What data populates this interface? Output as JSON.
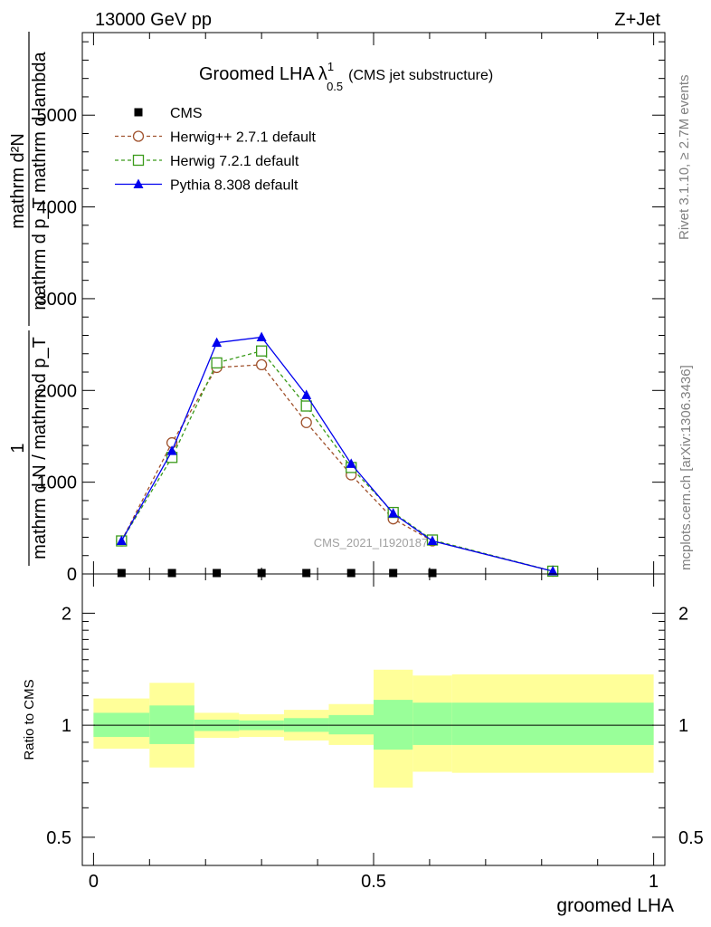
{
  "header": {
    "beam": "13000 GeV pp",
    "process": "Z+Jet"
  },
  "side_labels": {
    "rivet": "Rivet 3.1.10, ≥ 2.7M events",
    "site": "mcplots.cern.ch [arXiv:1306.3436]"
  },
  "chart_data": [
    {
      "type": "line",
      "title_main": "Groomed LHA",
      "title_symbol": "λ",
      "title_sup": "1",
      "title_sub": "0.5",
      "subtitle": "(CMS jet substructure)",
      "ylabel_numerator": "mathrm d²N",
      "ylabel_denominator": "mathrm d p_T mathrm d lambda",
      "ylabel_prefix_numerator": "1",
      "ylabel_prefix_denominator": "mathrm d N / mathrm d p_T",
      "watermark": "CMS_2021_I1920187",
      "ylim": [
        0,
        5900
      ],
      "xlim": [
        -0.02,
        1.02
      ],
      "yticks": [
        0,
        1000,
        2000,
        3000,
        4000,
        5000
      ],
      "yticklabels": [
        "0",
        "1000",
        "2000",
        "3000",
        "4000",
        "5000"
      ],
      "legend_position": "top-left",
      "series": [
        {
          "name": "CMS",
          "color": "#000000",
          "marker": "square-filled",
          "x": [
            0.05,
            0.14,
            0.22,
            0.3,
            0.38,
            0.46,
            0.535,
            0.605
          ],
          "y": [
            0,
            0,
            0,
            0,
            0,
            0,
            0,
            0
          ]
        },
        {
          "name": "Herwig++ 2.7.1 default",
          "color": "#a0522d",
          "marker": "circle-open",
          "dash": "dashed",
          "x": [
            0.05,
            0.14,
            0.22,
            0.3,
            0.38,
            0.46,
            0.535,
            0.605,
            0.82
          ],
          "y": [
            360,
            1430,
            2250,
            2280,
            1650,
            1080,
            600,
            360,
            30
          ]
        },
        {
          "name": "Herwig 7.2.1 default",
          "color": "#3a9a1a",
          "marker": "square-open",
          "dash": "dashed",
          "x": [
            0.05,
            0.14,
            0.22,
            0.3,
            0.38,
            0.46,
            0.535,
            0.605,
            0.82
          ],
          "y": [
            360,
            1270,
            2300,
            2430,
            1830,
            1160,
            670,
            370,
            30
          ]
        },
        {
          "name": "Pythia 8.308 default",
          "color": "#0000ee",
          "marker": "triangle-filled",
          "dash": "solid",
          "x": [
            0.05,
            0.14,
            0.22,
            0.3,
            0.38,
            0.46,
            0.535,
            0.605,
            0.82
          ],
          "y": [
            360,
            1340,
            2520,
            2580,
            1950,
            1200,
            660,
            360,
            30
          ]
        }
      ]
    },
    {
      "type": "area",
      "ylabel": "Ratio to CMS",
      "xlabel": "groomed LHA",
      "ylim": [
        0.42,
        2.55
      ],
      "yscale": "log",
      "yticks": [
        0.5,
        1,
        2
      ],
      "yticklabels": [
        "0.5",
        "1",
        "2"
      ],
      "xticks": [
        0,
        0.5,
        1
      ],
      "xticklabels": [
        "0",
        "0.5",
        "1"
      ],
      "bins": [
        {
          "x0": 0.0,
          "x1": 0.1,
          "band1": [
            0.93,
            1.08
          ],
          "band2": [
            0.865,
            1.18
          ]
        },
        {
          "x0": 0.1,
          "x1": 0.18,
          "band1": [
            0.89,
            1.13
          ],
          "band2": [
            0.77,
            1.3
          ]
        },
        {
          "x0": 0.18,
          "x1": 0.26,
          "band1": [
            0.965,
            1.035
          ],
          "band2": [
            0.925,
            1.08
          ]
        },
        {
          "x0": 0.26,
          "x1": 0.34,
          "band1": [
            0.97,
            1.03
          ],
          "band2": [
            0.93,
            1.07
          ]
        },
        {
          "x0": 0.34,
          "x1": 0.42,
          "band1": [
            0.96,
            1.045
          ],
          "band2": [
            0.91,
            1.1
          ]
        },
        {
          "x0": 0.42,
          "x1": 0.5,
          "band1": [
            0.945,
            1.065
          ],
          "band2": [
            0.885,
            1.14
          ]
        },
        {
          "x0": 0.5,
          "x1": 0.57,
          "band1": [
            0.86,
            1.17
          ],
          "band2": [
            0.68,
            1.41
          ]
        },
        {
          "x0": 0.57,
          "x1": 0.64,
          "band1": [
            0.885,
            1.15
          ],
          "band2": [
            0.75,
            1.36
          ]
        },
        {
          "x0": 0.64,
          "x1": 1.0,
          "band1": [
            0.885,
            1.15
          ],
          "band2": [
            0.745,
            1.37
          ]
        }
      ],
      "band_colors": {
        "inner": "#99ff99",
        "outer": "#ffff99"
      }
    }
  ]
}
